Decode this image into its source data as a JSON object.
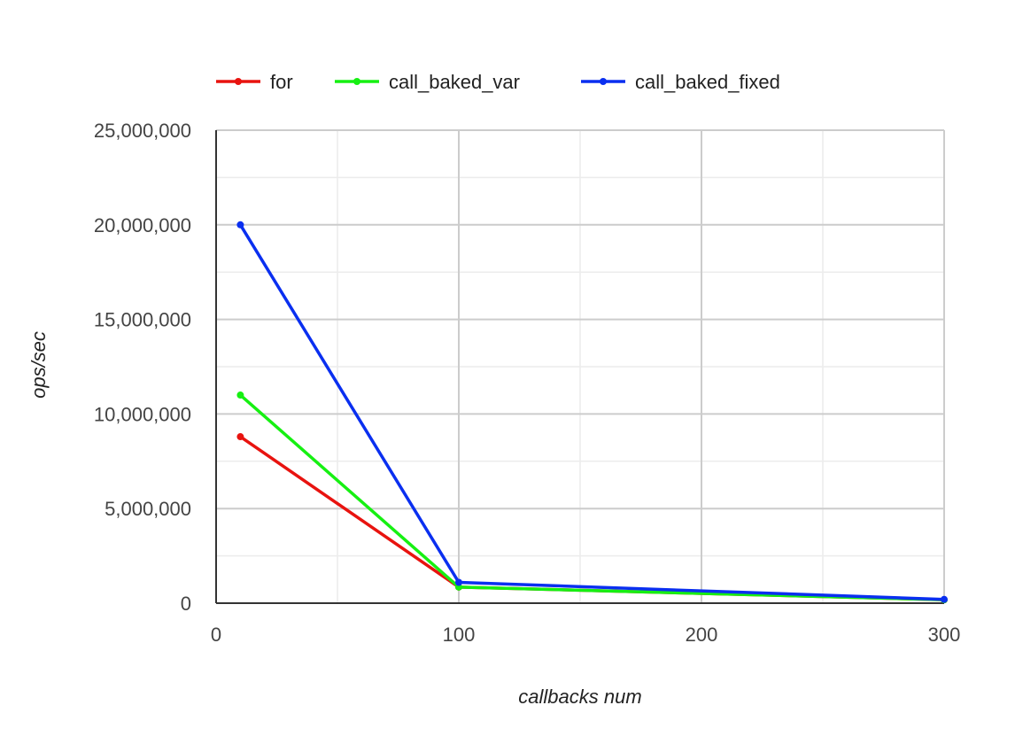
{
  "chart_data": {
    "type": "line",
    "title": "",
    "xlabel": "callbacks num",
    "ylabel": "ops/sec",
    "xlim": [
      0,
      300
    ],
    "ylim": [
      0,
      25000000
    ],
    "x_ticks": [
      0,
      100,
      200,
      300
    ],
    "x_tick_labels": [
      "0",
      "100",
      "200",
      "300"
    ],
    "y_ticks": [
      0,
      5000000,
      10000000,
      15000000,
      20000000,
      25000000
    ],
    "y_tick_labels": [
      "0",
      "5,000,000",
      "10,000,000",
      "15,000,000",
      "20,000,000",
      "25,000,000"
    ],
    "grid": true,
    "legend_position": "top",
    "x": [
      10,
      100,
      300
    ],
    "series": [
      {
        "name": "for",
        "color": "#e8130f",
        "values": [
          8800000,
          850000,
          180000
        ]
      },
      {
        "name": "call_baked_var",
        "color": "#16f012",
        "values": [
          11000000,
          850000,
          180000
        ]
      },
      {
        "name": "call_baked_fixed",
        "color": "#0a2ff0",
        "values": [
          20000000,
          1100000,
          200000
        ]
      }
    ]
  }
}
